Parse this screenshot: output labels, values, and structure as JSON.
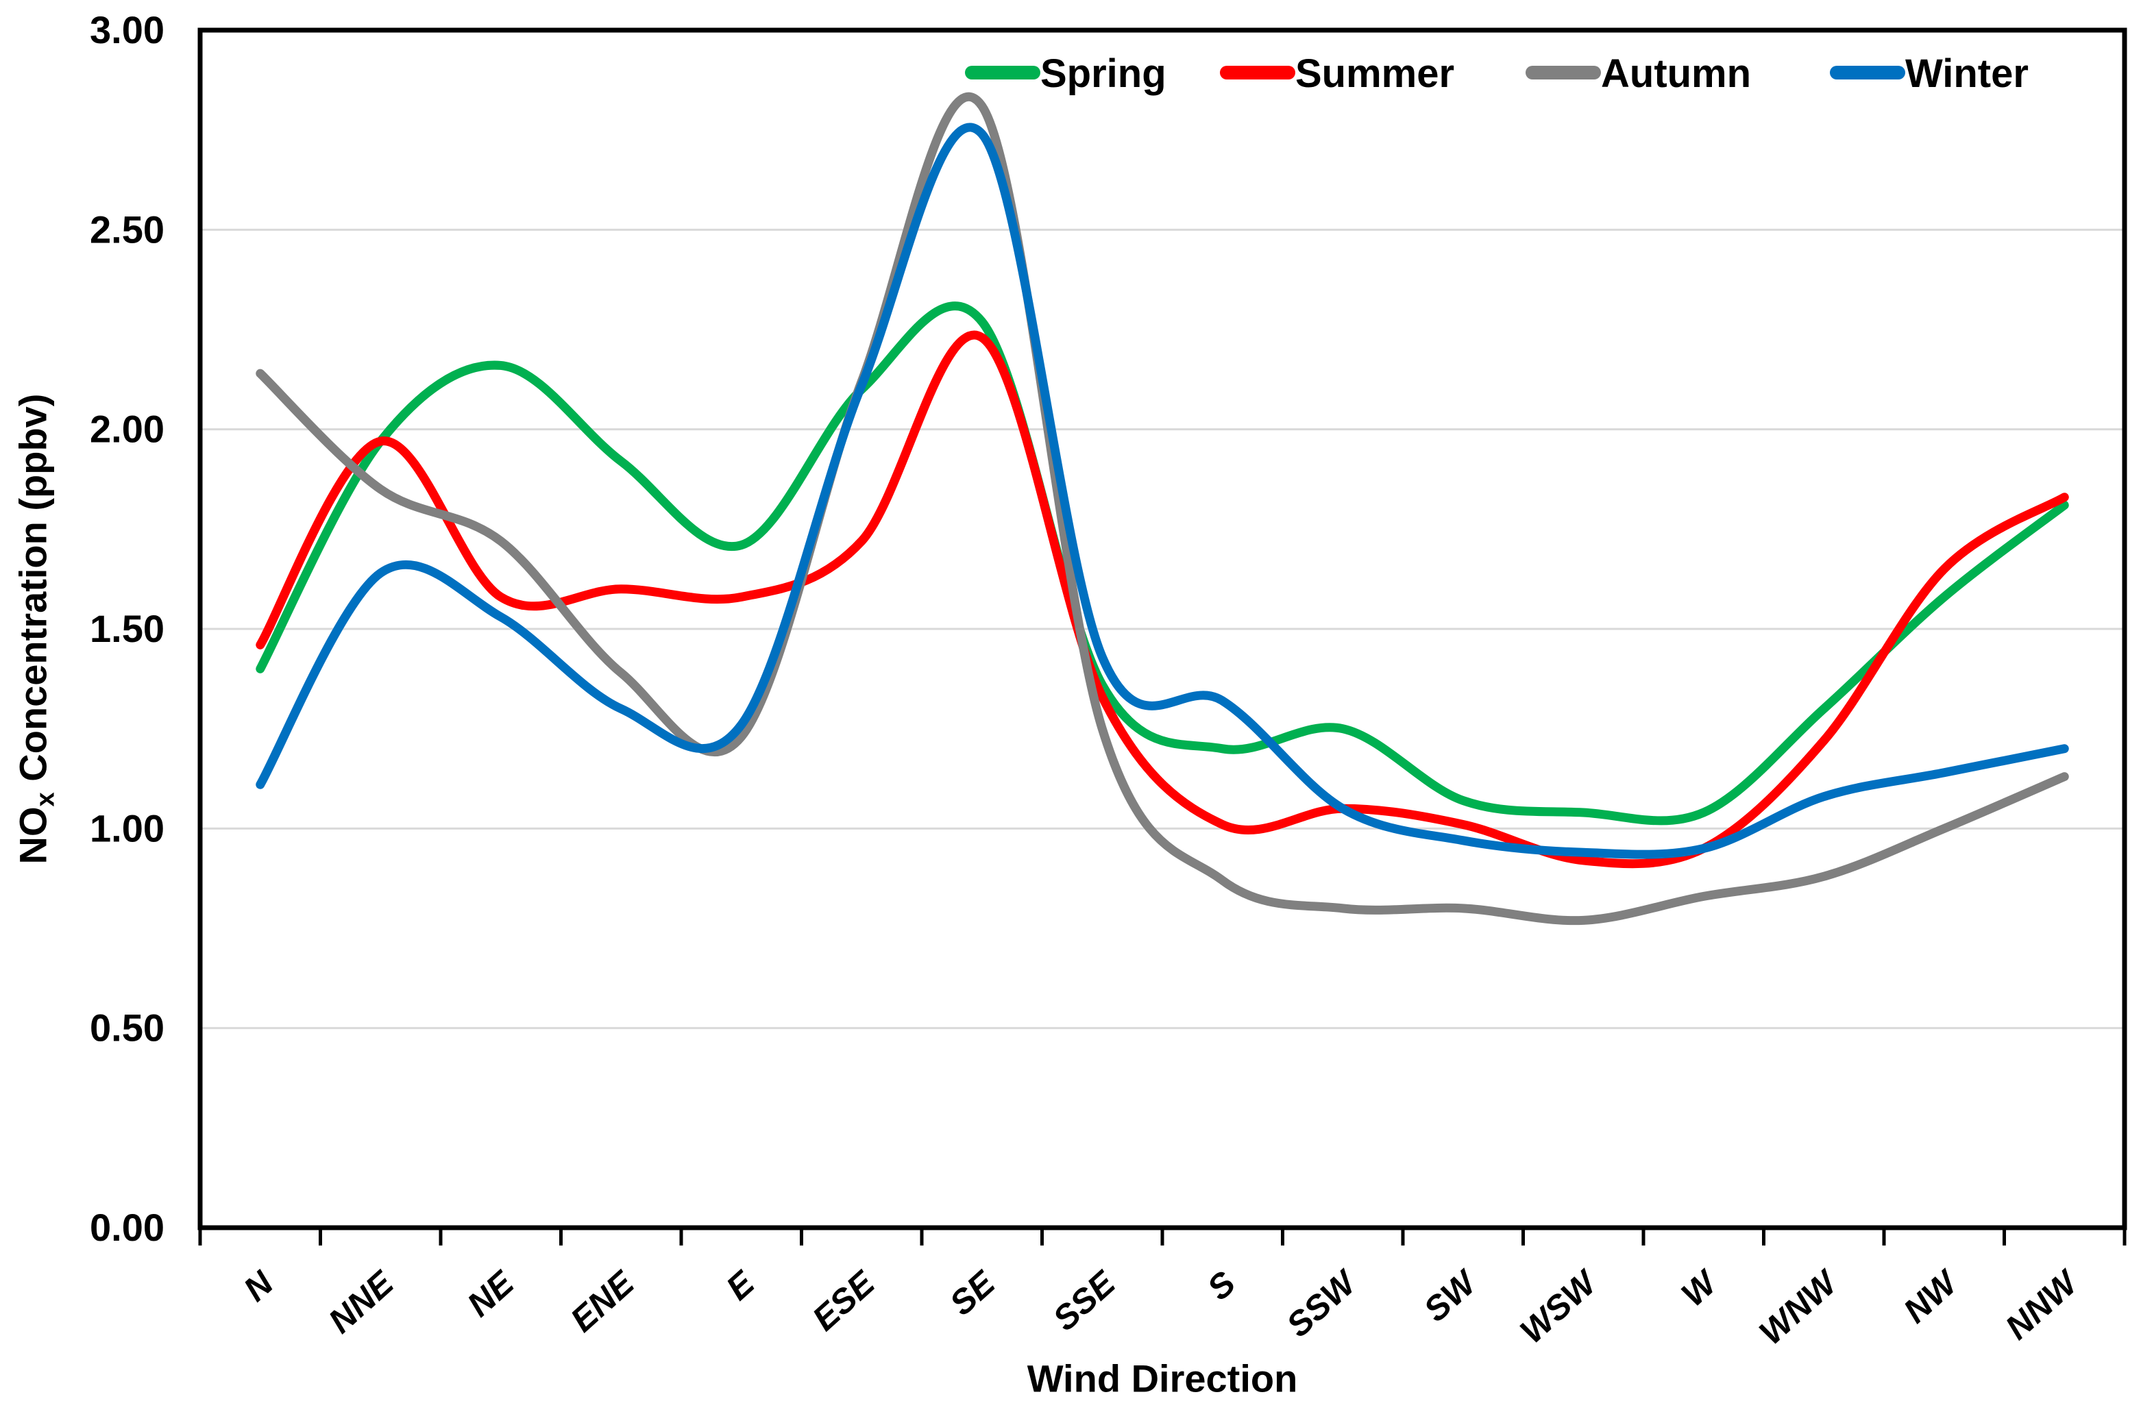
{
  "chart_data": {
    "type": "line",
    "title": "",
    "xlabel": "Wind Direction",
    "ylabel": {
      "prefix": "NO",
      "subscript": "x",
      "suffix": " Concentration (ppbv)"
    },
    "categories": [
      "N",
      "NNE",
      "NE",
      "ENE",
      "E",
      "ESE",
      "SE",
      "SSE",
      "S",
      "SSW",
      "SW",
      "WSW",
      "W",
      "WNW",
      "NW",
      "NNW"
    ],
    "series": [
      {
        "name": "Spring",
        "color": "#00B050",
        "values": [
          1.4,
          1.97,
          2.16,
          1.92,
          1.71,
          2.1,
          2.27,
          1.36,
          1.2,
          1.25,
          1.07,
          1.04,
          1.04,
          1.3,
          1.58,
          1.81
        ]
      },
      {
        "name": "Summer",
        "color": "#FF0000",
        "values": [
          1.46,
          1.97,
          1.58,
          1.6,
          1.58,
          1.72,
          2.23,
          1.33,
          1.01,
          1.05,
          1.01,
          0.92,
          0.95,
          1.22,
          1.65,
          1.83
        ]
      },
      {
        "name": "Autumn",
        "color": "#808080",
        "values": [
          2.14,
          1.85,
          1.72,
          1.39,
          1.23,
          2.12,
          2.81,
          1.25,
          0.87,
          0.8,
          0.8,
          0.77,
          0.83,
          0.88,
          1.0,
          1.13
        ]
      },
      {
        "name": "Winter",
        "color": "#0070C0",
        "values": [
          1.11,
          1.64,
          1.53,
          1.3,
          1.26,
          2.11,
          2.74,
          1.43,
          1.32,
          1.05,
          0.97,
          0.94,
          0.95,
          1.08,
          1.14,
          1.2
        ]
      }
    ],
    "ylim": [
      0,
      3
    ],
    "ytick_step": 0.5,
    "ytick_labels": [
      "0.00",
      "0.50",
      "1.00",
      "1.50",
      "2.00",
      "2.50",
      "3.00"
    ],
    "grid": true,
    "legend_position": "top-inside",
    "line_smoothing": true
  },
  "styling": {
    "background": "#FFFFFF",
    "axis_color": "#000000",
    "grid_color": "#D9D9D9",
    "text_color": "#000000"
  }
}
